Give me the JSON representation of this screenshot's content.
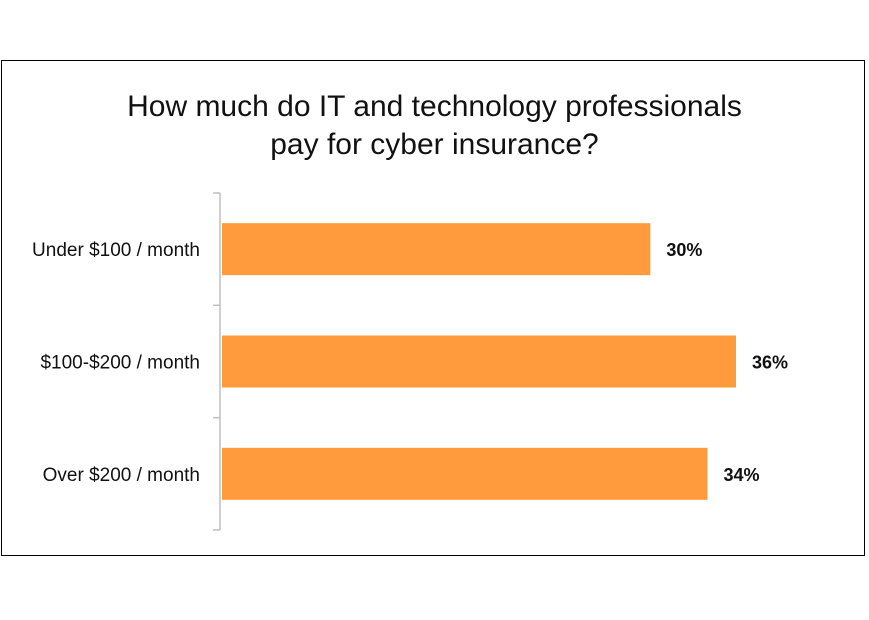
{
  "chart_data": {
    "type": "bar",
    "orientation": "horizontal",
    "title_lines": [
      "How much do IT and technology professionals",
      "pay for cyber insurance?"
    ],
    "categories": [
      "Under $100 / month",
      "$100-$200 / month",
      "Over $200 / month"
    ],
    "values": [
      30,
      36,
      34
    ],
    "value_labels": [
      "30%",
      "36%",
      "34%"
    ],
    "xlim": [
      0,
      40
    ],
    "grid": false,
    "legend": "none",
    "bar_color": "#FF9A3D"
  }
}
